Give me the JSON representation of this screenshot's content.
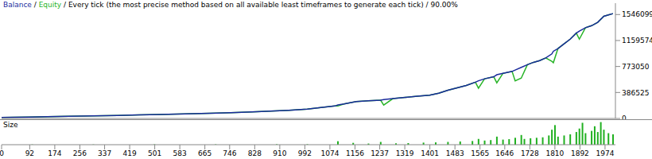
{
  "chart_data": [
    {
      "type": "line",
      "title": "Balance / Equity / Every tick (the most precise method based on all available least timeframes to generate each tick) / 90.00%",
      "x": [
        0,
        40,
        90,
        150,
        220,
        300,
        380,
        450,
        520,
        600,
        680,
        750,
        820,
        880,
        940,
        1000,
        1050,
        1090,
        1100,
        1120,
        1160,
        1200,
        1240,
        1250,
        1280,
        1320,
        1360,
        1400,
        1430,
        1460,
        1490,
        1520,
        1550,
        1560,
        1580,
        1610,
        1620,
        1640,
        1670,
        1680,
        1700,
        1720,
        1740,
        1760,
        1780,
        1800,
        1805,
        1820,
        1840,
        1860,
        1880,
        1890,
        1910,
        1930,
        1950,
        1970,
        1985,
        2000
      ],
      "series": [
        {
          "name": "Balance",
          "color": "#1a2a9c",
          "values": [
            15000,
            18000,
            22000,
            27000,
            32000,
            38000,
            45000,
            52000,
            59000,
            67000,
            76000,
            86000,
            97000,
            108000,
            122000,
            140000,
            165000,
            185000,
            200000,
            215000,
            250000,
            262000,
            272000,
            280000,
            295000,
            312000,
            330000,
            345000,
            375000,
            420000,
            455000,
            490000,
            540000,
            560000,
            590000,
            620000,
            650000,
            670000,
            700000,
            720000,
            760000,
            800000,
            835000,
            860000,
            900000,
            960000,
            1000000,
            1040000,
            1110000,
            1180000,
            1270000,
            1300000,
            1350000,
            1380000,
            1430000,
            1520000,
            1540000,
            1560000
          ]
        },
        {
          "name": "Equity",
          "color": "#28b428",
          "values": [
            15000,
            18000,
            22000,
            27000,
            32000,
            38000,
            45000,
            52000,
            59000,
            67000,
            76000,
            86000,
            97000,
            108000,
            122000,
            140000,
            165000,
            185000,
            185000,
            215000,
            250000,
            262000,
            272000,
            200000,
            295000,
            312000,
            330000,
            345000,
            375000,
            420000,
            455000,
            490000,
            540000,
            450000,
            590000,
            620000,
            530000,
            670000,
            700000,
            560000,
            600000,
            800000,
            835000,
            860000,
            900000,
            850000,
            830000,
            1040000,
            1110000,
            1180000,
            1270000,
            1180000,
            1350000,
            1380000,
            1430000,
            1520000,
            1540000,
            1560000
          ]
        }
      ],
      "xlim": [
        0,
        2008
      ],
      "ylim": [
        0,
        1715000
      ],
      "yticks": [
        0,
        386525,
        773050,
        1159574,
        1546099
      ],
      "tick_labels": "y",
      "grid": false
    },
    {
      "type": "bar",
      "title": "Size",
      "x": [
        100,
        300,
        500,
        700,
        900,
        1000,
        1100,
        1150,
        1200,
        1240,
        1290,
        1330,
        1380,
        1420,
        1460,
        1500,
        1540,
        1560,
        1580,
        1600,
        1620,
        1640,
        1660,
        1680,
        1700,
        1710,
        1730,
        1750,
        1770,
        1790,
        1800,
        1810,
        1820,
        1840,
        1860,
        1880,
        1890,
        1900,
        1910,
        1930,
        1940,
        1950,
        1960,
        1970,
        1985,
        2000
      ],
      "values": [
        0.1,
        0.1,
        0.15,
        0.15,
        0.2,
        0.2,
        1.5,
        0.8,
        0.5,
        1.2,
        0.6,
        0.7,
        0.9,
        1.0,
        1.2,
        1.4,
        1.6,
        2.5,
        1.8,
        2.0,
        3.5,
        2.2,
        2.4,
        3.0,
        4.2,
        2.5,
        2.8,
        3.0,
        3.2,
        4.0,
        6.5,
        8.5,
        3.5,
        4.0,
        4.5,
        5.5,
        7.0,
        9.5,
        5.0,
        6.0,
        8.0,
        5.5,
        9.8,
        6.5,
        5.0,
        4.5
      ],
      "color": "#20b020",
      "xlim": [
        0,
        2008
      ],
      "ylim": [
        0,
        10
      ],
      "xticks": [
        0,
        92,
        174,
        256,
        337,
        419,
        501,
        583,
        665,
        746,
        828,
        910,
        992,
        1074,
        1156,
        1237,
        1319,
        1401,
        1483,
        1565,
        1646,
        1728,
        1810,
        1892,
        1974
      ],
      "tick_labels": "x",
      "grid": false
    }
  ]
}
